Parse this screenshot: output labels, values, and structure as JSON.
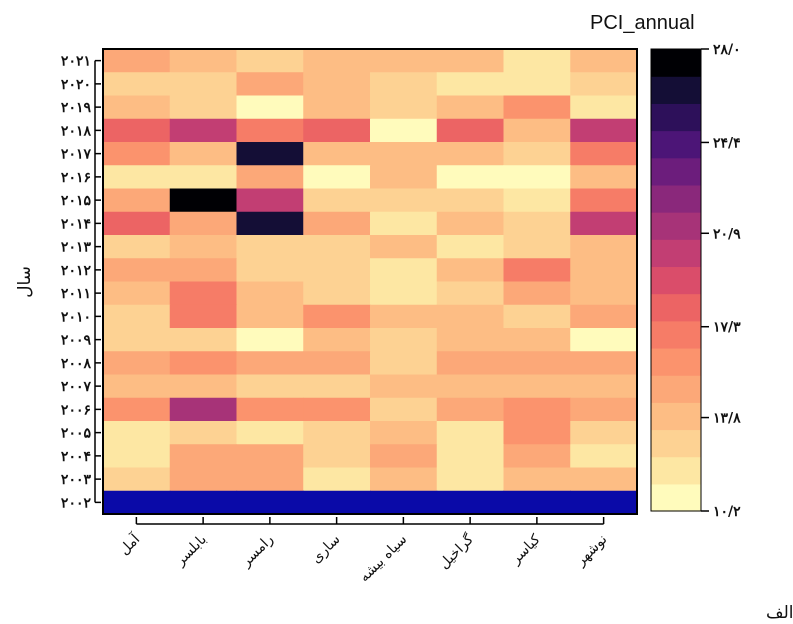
{
  "chart_data": {
    "type": "heatmap",
    "title": "PCI_annual",
    "ylabel": "سال",
    "xlabel": "",
    "panel_label": "الف",
    "stations": [
      "آمل",
      "بابلسر",
      "رامسر",
      "ساری",
      "سیاه بیشه",
      "گراخیل",
      "کیاسر",
      "نوشهر"
    ],
    "years": [
      "۲۰۲۱",
      "۲۰۲۰",
      "۲۰۱۹",
      "۲۰۱۸",
      "۲۰۱۷",
      "۲۰۱۶",
      "۲۰۱۵",
      "۲۰۱۴",
      "۲۰۱۳",
      "۲۰۱۲",
      "۲۰۱۱",
      "۲۰۱۰",
      "۲۰۰۹",
      "۲۰۰۸",
      "۲۰۰۷",
      "۲۰۰۶",
      "۲۰۰۵",
      "۲۰۰۴",
      "۲۰۰۳",
      "۲۰۰۲"
    ],
    "values": [
      [
        14.5,
        13.8,
        12.5,
        13.5,
        13.5,
        13.8,
        12.0,
        14.2
      ],
      [
        13.0,
        13.0,
        14.5,
        13.8,
        13.0,
        12.0,
        11.5,
        13.0
      ],
      [
        13.5,
        13.0,
        10.4,
        13.5,
        13.0,
        13.5,
        15.5,
        12.0
      ],
      [
        18.5,
        20.0,
        17.0,
        18.5,
        10.5,
        18.5,
        14.0,
        20.5
      ],
      [
        15.5,
        14.0,
        26.5,
        13.5,
        14.2,
        13.5,
        12.5,
        17.5
      ],
      [
        11.5,
        11.5,
        15.0,
        10.9,
        14.2,
        11.0,
        10.9,
        14.0
      ],
      [
        15.0,
        28.0,
        20.0,
        13.0,
        12.5,
        13.0,
        12.0,
        17.0
      ],
      [
        18.5,
        14.5,
        26.0,
        14.5,
        11.5,
        14.0,
        13.0,
        20.5
      ],
      [
        12.5,
        13.5,
        13.0,
        13.0,
        13.8,
        12.0,
        12.5,
        14.2
      ],
      [
        14.5,
        14.8,
        12.5,
        12.5,
        11.5,
        13.5,
        16.5,
        13.5
      ],
      [
        14.0,
        16.5,
        13.5,
        13.2,
        11.5,
        13.0,
        15.0,
        14.0
      ],
      [
        12.5,
        17.5,
        13.8,
        15.5,
        13.5,
        13.5,
        12.5,
        14.5
      ],
      [
        12.5,
        12.5,
        10.9,
        13.8,
        13.0,
        13.5,
        13.8,
        10.9
      ],
      [
        15.0,
        15.5,
        14.8,
        14.5,
        13.0,
        14.8,
        14.5,
        14.8
      ],
      [
        13.5,
        14.2,
        12.5,
        13.0,
        14.2,
        13.5,
        13.8,
        14.0
      ],
      [
        16.0,
        21.5,
        15.5,
        16.0,
        12.5,
        14.5,
        15.5,
        14.5
      ],
      [
        11.5,
        12.8,
        11.8,
        13.0,
        13.8,
        11.5,
        16.0,
        13.2
      ],
      [
        12.0,
        14.5,
        15.0,
        13.0,
        14.5,
        11.5,
        14.5,
        11.5
      ],
      [
        13.0,
        14.5,
        15.0,
        11.8,
        13.8,
        11.5,
        14.0,
        13.5
      ],
      [
        28.5,
        28.5,
        28.5,
        28.5,
        28.5,
        28.5,
        28.5,
        28.5
      ]
    ],
    "colorbar": {
      "min": 10.2,
      "max": 28.0,
      "tick_values": [
        10.2,
        13.8,
        17.3,
        20.9,
        24.4,
        28.0
      ],
      "tick_labels": [
        "۱۰/۲",
        "۱۳/۸",
        "۱۷/۳",
        "۲۰/۹",
        "۲۴/۴",
        "۲۸/۰"
      ]
    },
    "palette": [
      "#fffbbc",
      "#fde7a3",
      "#fdd293",
      "#fdbd84",
      "#fca878",
      "#fb936d",
      "#f67c67",
      "#ec6464",
      "#da4d6a",
      "#c23e73",
      "#a73378",
      "#8a287b",
      "#6c1d7c",
      "#4c1577",
      "#2d105a",
      "#140e36",
      "#000004"
    ],
    "out_of_range_color": "#0a0aa8"
  }
}
